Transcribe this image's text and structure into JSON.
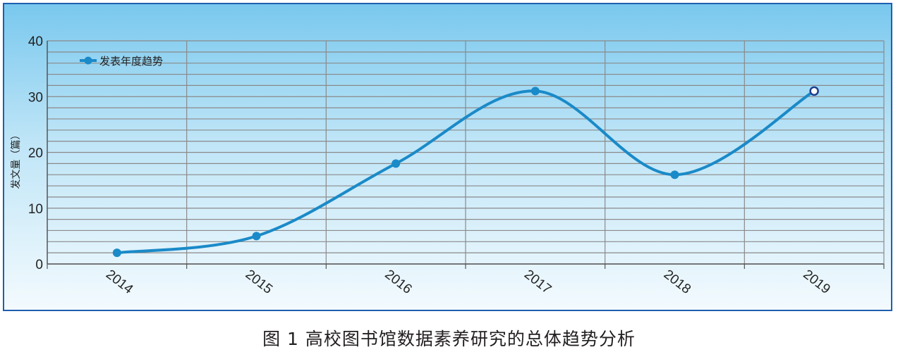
{
  "chart_data": {
    "type": "line",
    "title": "",
    "xlabel": "",
    "ylabel": "发文量（篇）",
    "categories": [
      "2014",
      "2015",
      "2016",
      "2017",
      "2018",
      "2019"
    ],
    "series": [
      {
        "name": "发表年度趋势",
        "values": [
          2,
          5,
          18,
          31,
          16,
          31
        ]
      }
    ],
    "ylim": [
      0,
      40
    ],
    "yticks": [
      0,
      10,
      20,
      30,
      40
    ],
    "grid": true,
    "legend": "top-left",
    "smooth": true,
    "colors": {
      "line": "#1a8ac8",
      "last_marker": "#1c3f8f",
      "grid": "#8a8a8a",
      "frame": "#1f5fb0"
    }
  },
  "caption": "图 1  高校图书馆数据素养研究的总体趋势分析"
}
